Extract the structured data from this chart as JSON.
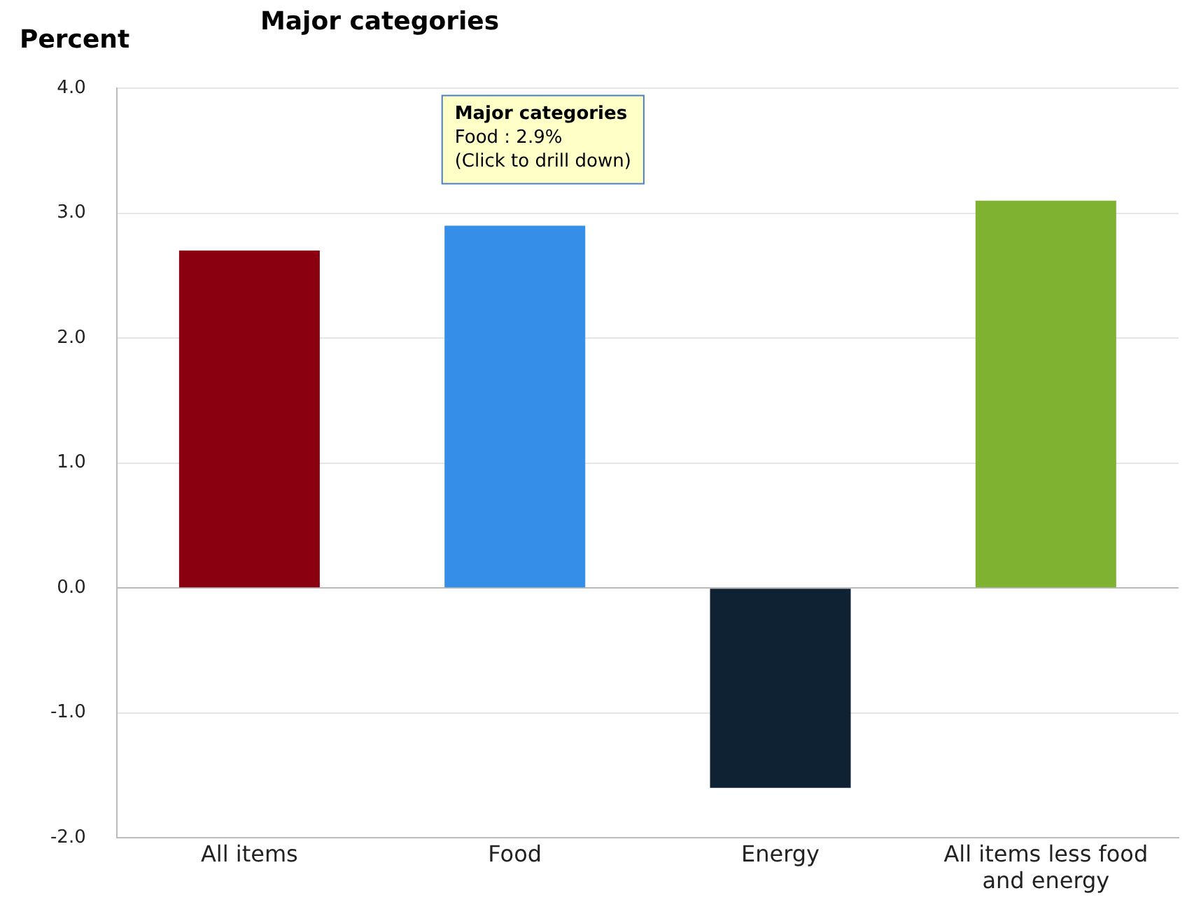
{
  "chart_data": {
    "type": "bar",
    "title": "Major categories",
    "ylabel": "Percent",
    "categories": [
      "All items",
      "Food",
      "Energy",
      "All items less food and energy"
    ],
    "values": [
      2.7,
      2.9,
      -1.6,
      3.1
    ],
    "colors": [
      "#8b0010",
      "#358ee8",
      "#0f2233",
      "#80b232"
    ],
    "ylim": [
      -2,
      4
    ],
    "yticks": [
      {
        "value": -2,
        "label": "-2.0"
      },
      {
        "value": -1,
        "label": "-1.0"
      },
      {
        "value": 0,
        "label": "0.0"
      },
      {
        "value": 1,
        "label": "1.0"
      },
      {
        "value": 2,
        "label": "2.0"
      },
      {
        "value": 3,
        "label": "3.0"
      },
      {
        "value": 4,
        "label": "4.0"
      }
    ],
    "grid": "y",
    "legend": false,
    "annotations": [
      {
        "text": "Major categories\nFood : 2.9%\n(Click to drill down)",
        "x": "Food",
        "y": 2.9
      }
    ]
  }
}
